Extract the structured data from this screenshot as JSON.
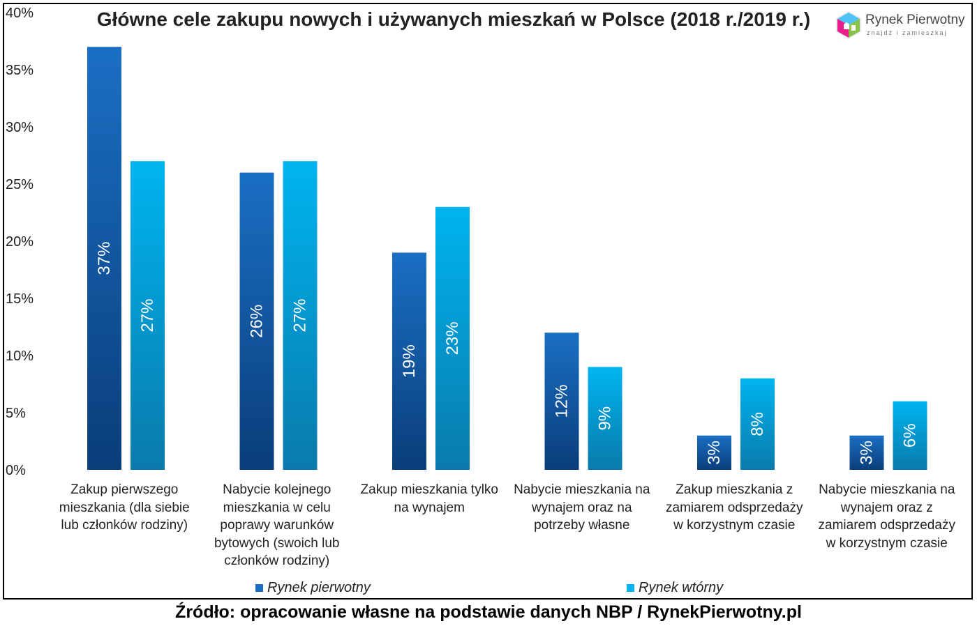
{
  "title": "Główne cele zakupu nowych i używanych mieszkań w Polsce (2018 r./2019 r.)",
  "source": "Źródło: opracowanie własne na podstawie danych NBP / RynekPierwotny.pl",
  "logo": {
    "name": "Rynek Pierwotny",
    "tagline": "znajdź i zamieszkaj",
    "icon": "house-logo-icon"
  },
  "colors": {
    "primary_top": "#1a6fc4",
    "primary_bottom": "#0a3d7a",
    "secondary_top": "#00b4f0",
    "secondary_bottom": "#0a7aab"
  },
  "chart_data": {
    "type": "bar",
    "title": "Główne cele zakupu nowych i używanych mieszkań w Polsce (2018 r./2019 r.)",
    "categories": [
      "Zakup pierwszego mieszkania (dla siebie lub członków rodziny)",
      "Nabycie kolejnego mieszkania w celu poprawy warunków bytowych (swoich lub członków rodziny)",
      "Zakup mieszkania tylko na wynajem",
      "Nabycie mieszkania na wynajem oraz na potrzeby własne",
      "Zakup mieszkania z zamiarem odsprzedaży w korzystnym czasie",
      "Nabycie mieszkania na wynajem oraz z zamiarem odsprzedaży w korzystnym czasie"
    ],
    "category_lines": [
      [
        "Zakup pierwszego",
        "mieszkania (dla siebie",
        "lub członków rodziny)"
      ],
      [
        "Nabycie kolejnego",
        "mieszkania w celu",
        "poprawy warunków",
        "bytowych (swoich lub",
        "członków rodziny)"
      ],
      [
        "Zakup mieszkania tylko",
        "na wynajem"
      ],
      [
        "Nabycie mieszkania na",
        "wynajem oraz na",
        "potrzeby własne"
      ],
      [
        "Zakup mieszkania z",
        "zamiarem odsprzedaży",
        "w korzystnym czasie"
      ],
      [
        "Nabycie mieszkania na",
        "wynajem oraz z",
        "zamiarem odsprzedaży",
        "w korzystnym czasie"
      ]
    ],
    "series": [
      {
        "name": "Rynek pierwotny",
        "values": [
          37,
          26,
          19,
          12,
          3,
          3
        ],
        "labels": [
          "37%",
          "26%",
          "19%",
          "12%",
          "3%",
          "3%"
        ]
      },
      {
        "name": "Rynek wtórny",
        "values": [
          27,
          27,
          23,
          9,
          8,
          6
        ],
        "labels": [
          "27%",
          "27%",
          "23%",
          "9%",
          "8%",
          "6%"
        ]
      }
    ],
    "yticks": [
      "0%",
      "5%",
      "10%",
      "15%",
      "20%",
      "25%",
      "30%",
      "35%",
      "40%"
    ],
    "ylim": [
      0,
      40
    ],
    "grid": false,
    "legend_position": "bottom"
  }
}
